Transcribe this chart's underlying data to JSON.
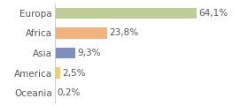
{
  "categories": [
    "Europa",
    "Africa",
    "Asia",
    "America",
    "Oceania"
  ],
  "values": [
    64.1,
    23.8,
    9.3,
    2.5,
    0.2
  ],
  "labels": [
    "64,1%",
    "23,8%",
    "9,3%",
    "2,5%",
    "0,2%"
  ],
  "bar_colors": [
    "#bfce96",
    "#f2b47e",
    "#7d8fbc",
    "#f0d060",
    "#a0c8a0"
  ],
  "background_color": "#ffffff",
  "xlim": [
    0,
    85
  ],
  "label_fontsize": 7.5,
  "tick_fontsize": 7.5
}
